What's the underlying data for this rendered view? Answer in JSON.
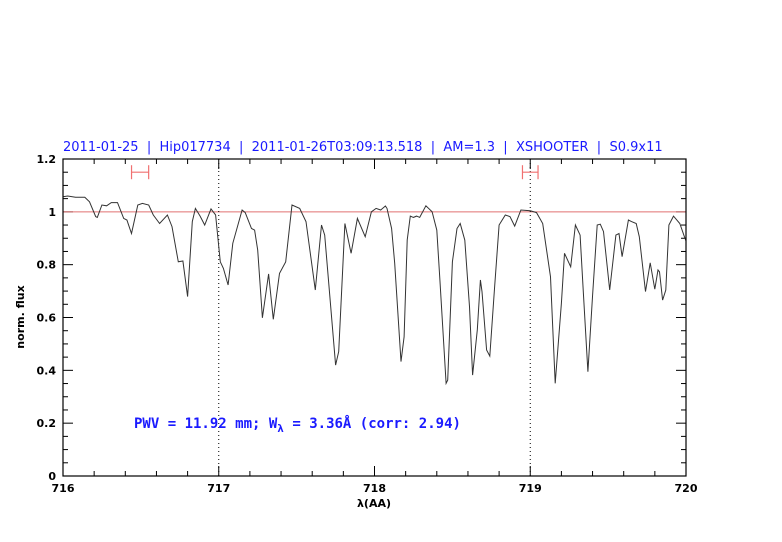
{
  "chart_data": {
    "type": "line",
    "title": "2011-01-25  |  Hip017734  |  2011-01-26T03:09:13.518  |  AM=1.3  |  XSHOOTER  |  S0.9x11",
    "xlabel": "λ(AA)",
    "ylabel": "norm. flux",
    "xlim": [
      716,
      720
    ],
    "ylim": [
      0,
      1.2
    ],
    "x_major_ticks": [
      716,
      717,
      718,
      719,
      720
    ],
    "x_minor_step": 0.2,
    "y_major_ticks": [
      0,
      0.2,
      0.4,
      0.6,
      0.8,
      1,
      1.2
    ],
    "y_tick_labels": [
      "0",
      "0.2",
      "0.4",
      "0.6",
      "0.8",
      "1",
      "1.2"
    ],
    "y_minor_step": 0.05,
    "grid": false,
    "annotation": {
      "pwv_text": "PWV = 11.92 mm; W",
      "subscript": "λ",
      "rest_text": " = 3.36Å (corr: 2.94)"
    },
    "reference_line_y": 1,
    "dotted_vertical_lines_x": [
      717,
      719
    ],
    "interval_markers": [
      {
        "x": [
          716.44,
          716.55
        ],
        "y": 1.15
      },
      {
        "x": [
          718.95,
          719.05
        ],
        "y": 1.15
      }
    ],
    "colors": {
      "spectrum": "#333333",
      "reference": "#e07070",
      "markers": "#f07070",
      "text": "#1a1aff"
    },
    "series": [
      {
        "x": [
          716.0,
          716.03,
          716.08,
          716.14,
          716.17,
          716.21,
          716.22,
          716.25,
          716.28,
          716.31,
          716.35,
          716.39,
          716.41,
          716.44,
          716.48,
          716.51,
          716.55,
          716.58,
          716.62,
          716.67,
          716.7,
          716.74,
          716.77,
          716.8,
          716.83,
          716.85,
          716.88,
          716.91,
          716.95,
          716.98,
          717.01,
          717.03,
          717.06,
          717.09,
          717.15,
          717.17,
          717.21,
          717.23,
          717.25,
          717.28,
          717.32,
          717.35,
          717.39,
          717.43,
          717.47,
          717.52,
          717.56,
          717.62,
          717.66,
          717.68,
          717.75,
          717.77,
          717.81,
          717.85,
          717.89,
          717.94,
          717.98,
          718.01,
          718.04,
          718.07,
          718.08,
          718.11,
          718.13,
          718.17,
          718.19,
          718.21,
          718.23,
          718.25,
          718.27,
          718.29,
          718.33,
          718.37,
          718.4,
          718.42,
          718.46,
          718.47,
          718.5,
          718.53,
          718.55,
          718.58,
          718.61,
          718.63,
          718.66,
          718.68,
          718.69,
          718.72,
          718.74,
          718.77,
          718.8,
          718.84,
          718.87,
          718.9,
          718.94,
          718.98,
          719.0,
          719.04,
          719.08,
          719.13,
          719.16,
          719.2,
          719.22,
          719.26,
          719.29,
          719.32,
          719.34,
          719.37,
          719.4,
          719.43,
          719.45,
          719.47,
          719.51,
          719.55,
          719.57,
          719.59,
          719.63,
          719.65,
          719.68,
          719.7,
          719.74,
          719.77,
          719.8,
          719.82,
          719.83,
          719.85,
          719.87,
          719.89,
          719.92,
          719.96,
          719.99,
          720.0
        ],
        "y": [
          1.057,
          1.06,
          1.055,
          1.055,
          1.038,
          0.982,
          0.979,
          1.026,
          1.023,
          1.035,
          1.035,
          0.975,
          0.969,
          0.918,
          1.026,
          1.032,
          1.026,
          0.988,
          0.956,
          0.988,
          0.944,
          0.811,
          0.814,
          0.679,
          0.963,
          1.013,
          0.984,
          0.95,
          1.011,
          0.988,
          0.811,
          0.786,
          0.723,
          0.881,
          1.007,
          0.997,
          0.937,
          0.931,
          0.855,
          0.599,
          0.765,
          0.593,
          0.767,
          0.811,
          1.026,
          1.013,
          0.963,
          0.704,
          0.95,
          0.912,
          0.42,
          0.471,
          0.956,
          0.843,
          0.975,
          0.906,
          1.0,
          1.013,
          1.007,
          1.022,
          1.013,
          0.937,
          0.805,
          0.433,
          0.527,
          0.893,
          0.984,
          0.979,
          0.984,
          0.979,
          1.023,
          1.0,
          0.931,
          0.742,
          0.351,
          0.363,
          0.811,
          0.937,
          0.956,
          0.893,
          0.641,
          0.382,
          0.553,
          0.742,
          0.698,
          0.477,
          0.454,
          0.704,
          0.95,
          0.988,
          0.982,
          0.946,
          1.007,
          1.005,
          1.004,
          0.997,
          0.956,
          0.754,
          0.351,
          0.654,
          0.843,
          0.792,
          0.95,
          0.912,
          0.704,
          0.395,
          0.679,
          0.95,
          0.953,
          0.925,
          0.704,
          0.912,
          0.918,
          0.83,
          0.969,
          0.963,
          0.956,
          0.906,
          0.698,
          0.807,
          0.707,
          0.78,
          0.773,
          0.666,
          0.704,
          0.95,
          0.984,
          0.956,
          0.906,
          0.89
        ]
      }
    ]
  }
}
